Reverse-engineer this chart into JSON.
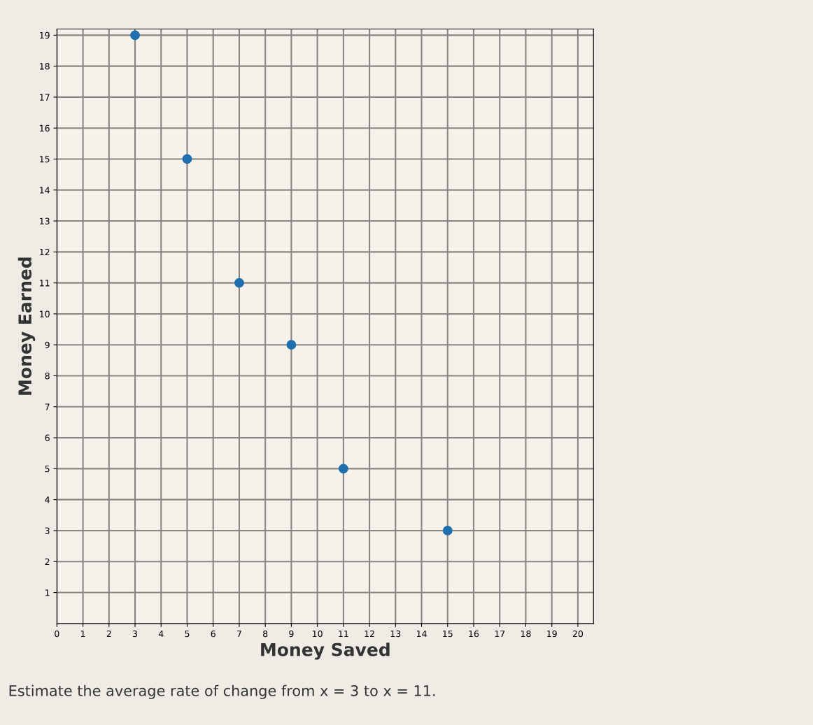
{
  "chart_data": {
    "type": "scatter",
    "xlabel": "Money Saved",
    "ylabel": "Money Earned",
    "x": [
      3,
      5,
      7,
      9,
      11,
      15
    ],
    "series": [
      {
        "color": "#1f6fae",
        "values": [
          19,
          15,
          11,
          9,
          5,
          3
        ]
      }
    ],
    "xlim": [
      0,
      20.6
    ],
    "ylim": [
      0,
      19.2
    ],
    "xticks": [
      0,
      1,
      2,
      3,
      4,
      5,
      6,
      7,
      8,
      9,
      10,
      11,
      12,
      13,
      14,
      15,
      16,
      17,
      18,
      19,
      20
    ],
    "yticks": [
      1,
      2,
      3,
      4,
      5,
      6,
      7,
      8,
      9,
      10,
      11,
      12,
      13,
      14,
      15,
      16,
      17,
      18,
      19
    ],
    "grid": true,
    "marker": "circle",
    "legend": false,
    "annotations": [
      "Estimate the average rate of change from x = 3 to x = 11."
    ]
  }
}
